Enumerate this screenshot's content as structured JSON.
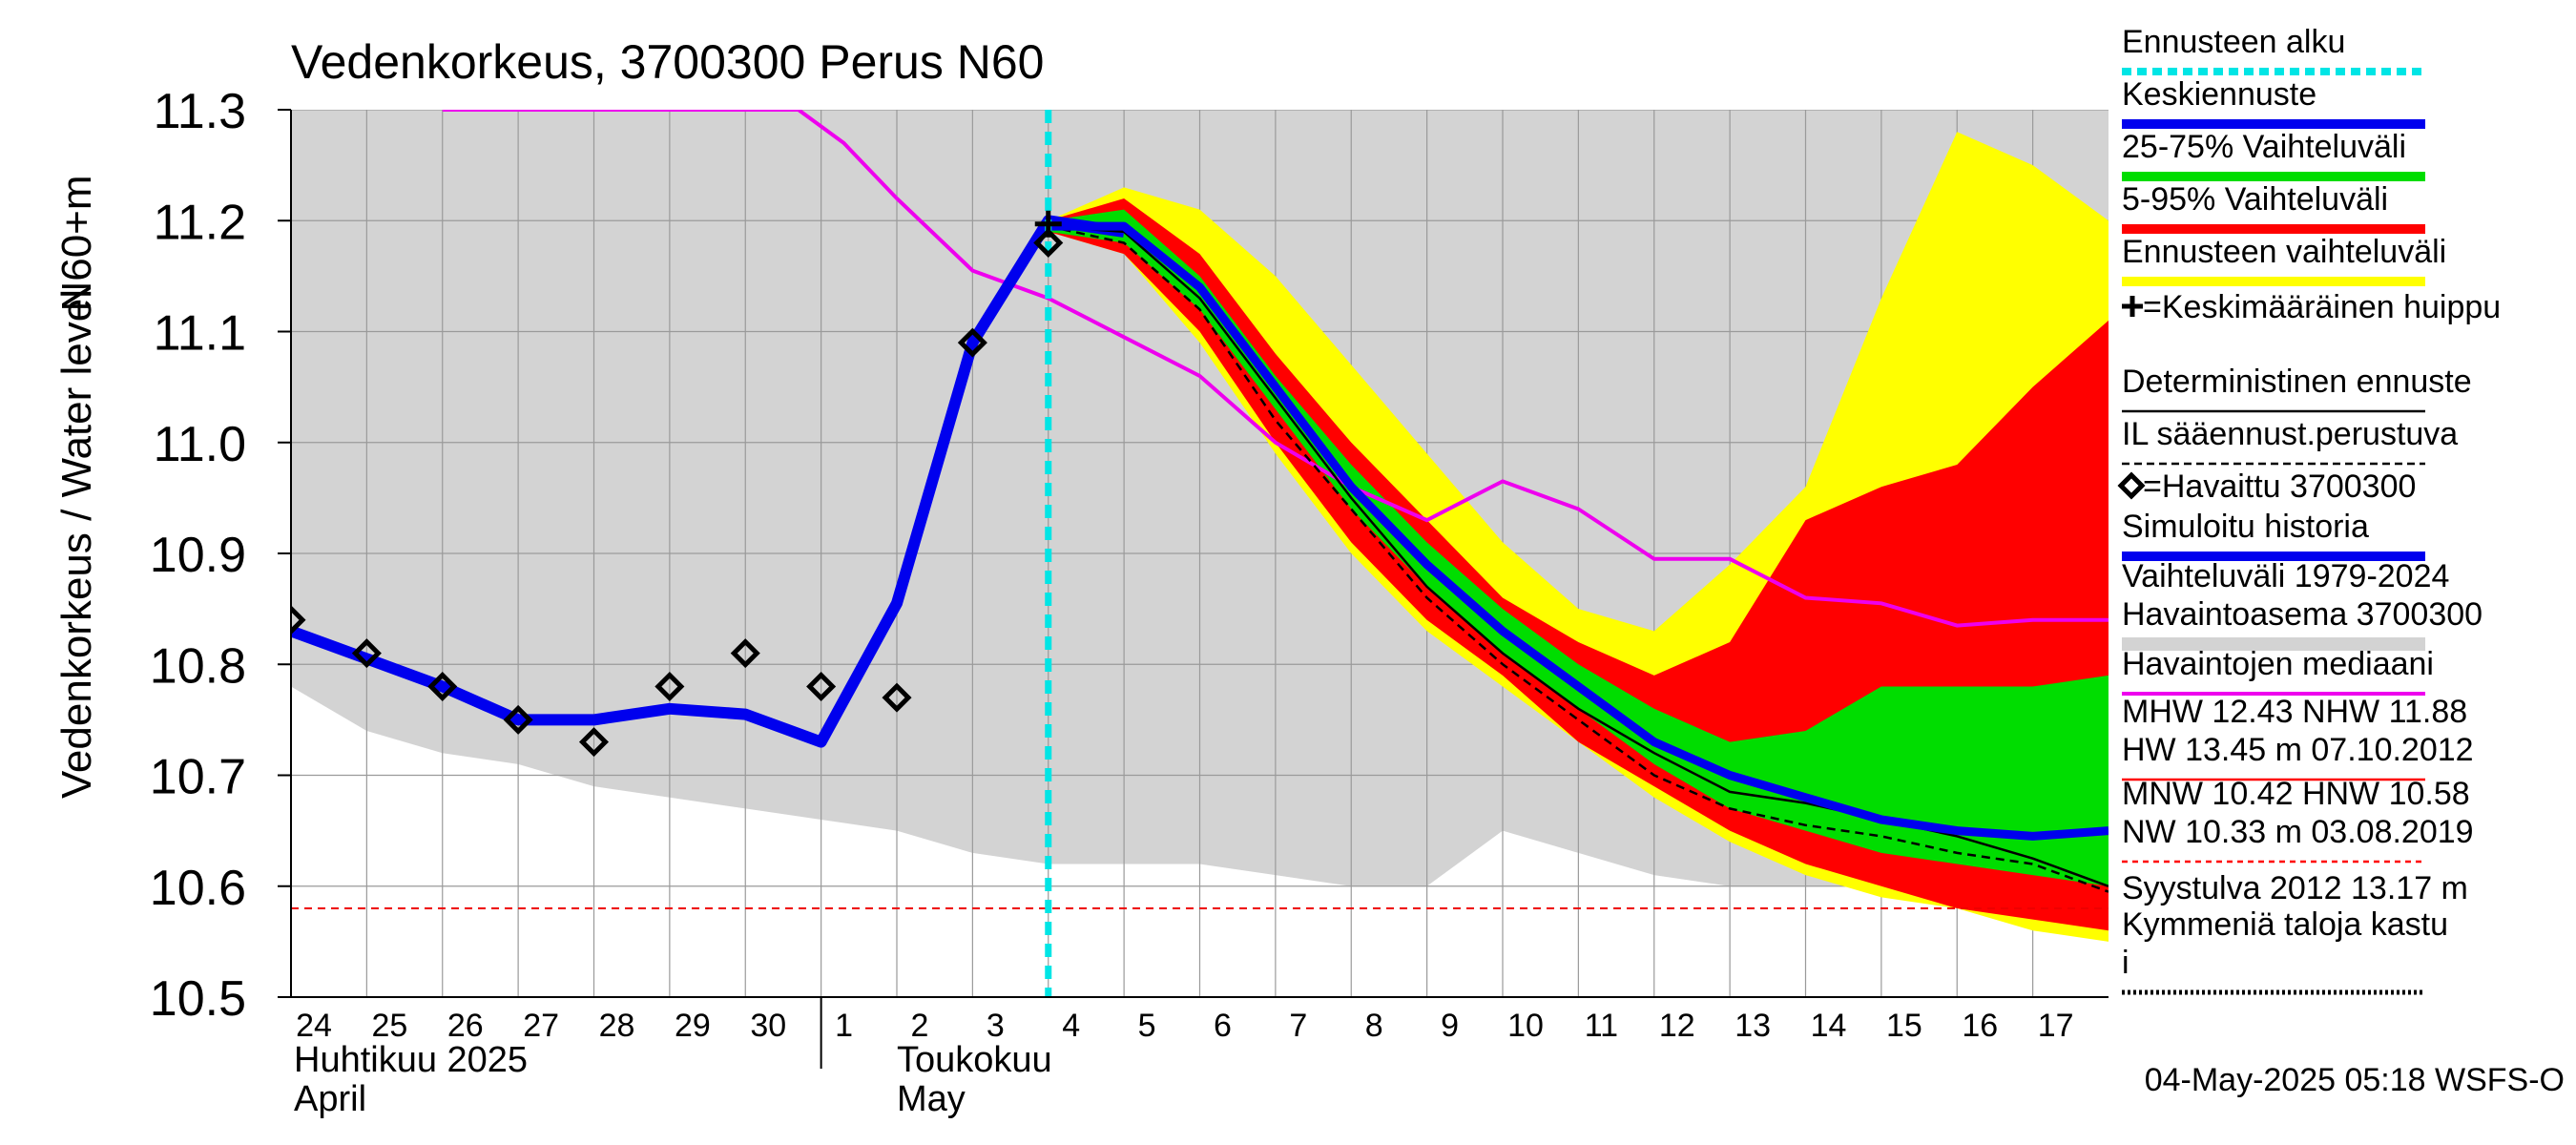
{
  "chart_data": {
    "type": "line",
    "title": "Vedenkorkeus, 3700300 Perus N60",
    "ylabel": "Vedenkorkeus / Water level",
    "yunit": "N60+m",
    "ylim": [
      10.5,
      11.3
    ],
    "yticks": [
      "10.5",
      "10.6",
      "10.7",
      "10.8",
      "10.9",
      "11.0",
      "11.1",
      "11.2",
      "11.3"
    ],
    "xlim": [
      0,
      24
    ],
    "xticks": [
      "24",
      "25",
      "26",
      "27",
      "28",
      "29",
      "30",
      "1",
      "2",
      "3",
      "4",
      "5",
      "6",
      "7",
      "8",
      "9",
      "10",
      "11",
      "12",
      "13",
      "14",
      "15",
      "16",
      "17"
    ],
    "month_labels": [
      {
        "fi": "Huhtikuu  2025",
        "en": "April"
      },
      {
        "fi": "Toukokuu",
        "en": "May"
      }
    ],
    "grid": true,
    "forecast_start_x": 10,
    "footer": "04-May-2025 05:18 WSFS-O",
    "colors": {
      "hist_range": "#d3d3d3",
      "forecast_range": "#ffff00",
      "p5_95": "#ff0000",
      "p25_75": "#00dd00",
      "mean": "#0000ee",
      "median_obs": "#ee00ee",
      "forecast_start": "#00e5e5",
      "mnw_line": "#ee0000"
    },
    "hist_range": {
      "x": [
        0,
        1,
        2,
        3,
        4,
        5,
        6,
        7,
        8,
        9,
        10,
        11,
        12,
        13,
        14,
        15,
        16,
        17,
        18,
        19,
        20,
        21,
        22,
        23,
        24
      ],
      "upper": [
        11.3,
        11.3,
        11.3,
        11.3,
        11.3,
        11.3,
        11.3,
        11.3,
        11.3,
        11.3,
        11.3,
        11.3,
        11.3,
        11.3,
        11.3,
        11.3,
        11.3,
        11.3,
        11.3,
        11.3,
        11.3,
        11.3,
        11.3,
        11.3,
        11.3
      ],
      "lower": [
        10.78,
        10.74,
        10.72,
        10.71,
        10.69,
        10.68,
        10.67,
        10.66,
        10.65,
        10.63,
        10.62,
        10.62,
        10.62,
        10.61,
        10.6,
        10.6,
        10.65,
        10.63,
        10.61,
        10.6,
        10.6,
        10.6,
        10.6,
        10.6,
        10.6
      ]
    },
    "forecast_range": {
      "x": [
        10,
        11,
        12,
        13,
        14,
        15,
        16,
        17,
        18,
        19,
        20,
        21,
        22,
        23,
        24
      ],
      "upper": [
        11.2,
        11.23,
        11.21,
        11.15,
        11.07,
        10.99,
        10.91,
        10.85,
        10.83,
        10.89,
        10.96,
        11.13,
        11.28,
        11.25,
        11.2
      ],
      "lower": [
        11.19,
        11.17,
        11.09,
        10.99,
        10.9,
        10.83,
        10.78,
        10.73,
        10.68,
        10.64,
        10.61,
        10.59,
        10.58,
        10.56,
        10.55
      ]
    },
    "p5_95": {
      "x": [
        10,
        11,
        12,
        13,
        14,
        15,
        16,
        17,
        18,
        19,
        20,
        21,
        22,
        23,
        24
      ],
      "upper": [
        11.2,
        11.22,
        11.17,
        11.08,
        11.0,
        10.93,
        10.86,
        10.82,
        10.79,
        10.82,
        10.93,
        10.96,
        10.98,
        11.05,
        11.11
      ],
      "lower": [
        11.19,
        11.17,
        11.1,
        11.0,
        10.91,
        10.84,
        10.79,
        10.73,
        10.69,
        10.65,
        10.62,
        10.6,
        10.58,
        10.57,
        10.56
      ]
    },
    "p25_75": {
      "x": [
        10,
        11,
        12,
        13,
        14,
        15,
        16,
        17,
        18,
        19,
        20,
        21,
        22,
        23,
        24
      ],
      "upper": [
        11.2,
        11.21,
        11.15,
        11.06,
        10.98,
        10.91,
        10.85,
        10.8,
        10.76,
        10.73,
        10.74,
        10.78,
        10.78,
        10.78,
        10.79
      ],
      "lower": [
        11.19,
        11.18,
        11.12,
        11.03,
        10.94,
        10.87,
        10.81,
        10.76,
        10.71,
        10.67,
        10.65,
        10.63,
        10.62,
        10.61,
        10.6
      ]
    },
    "series": [
      {
        "name": "Keskiennuste",
        "x": [
          10,
          11,
          12,
          13,
          14,
          15,
          16,
          17,
          18,
          19,
          20,
          21,
          22,
          23,
          24
        ],
        "values": [
          11.195,
          11.195,
          11.14,
          11.05,
          10.96,
          10.89,
          10.83,
          10.78,
          10.73,
          10.7,
          10.68,
          10.66,
          10.65,
          10.645,
          10.65
        ]
      },
      {
        "name": "Deterministinen ennuste",
        "x": [
          10,
          11,
          12,
          13,
          14,
          15,
          16,
          17,
          18,
          19,
          20,
          21,
          22,
          23,
          24
        ],
        "values": [
          11.195,
          11.19,
          11.13,
          11.04,
          10.95,
          10.87,
          10.81,
          10.76,
          10.72,
          10.685,
          10.675,
          10.66,
          10.645,
          10.625,
          10.6
        ]
      },
      {
        "name": "IL sääennust.perustuva",
        "x": [
          10,
          11,
          12,
          13,
          14,
          15,
          16,
          17,
          18,
          19,
          20,
          21,
          22,
          23,
          24
        ],
        "values": [
          11.195,
          11.18,
          11.12,
          11.02,
          10.94,
          10.86,
          10.8,
          10.75,
          10.7,
          10.67,
          10.655,
          10.645,
          10.63,
          10.62,
          10.595
        ]
      },
      {
        "name": "Simuloitu historia",
        "x": [
          0,
          1,
          2,
          3,
          4,
          5,
          6,
          7,
          8,
          9,
          10,
          11
        ],
        "values": [
          10.83,
          10.805,
          10.78,
          10.75,
          10.75,
          10.76,
          10.755,
          10.73,
          10.855,
          11.09,
          11.2,
          11.19
        ]
      },
      {
        "name": "Havaintojen mediaani",
        "x": [
          2,
          6.7,
          7.3,
          8,
          9,
          10,
          11,
          12,
          13,
          14,
          15,
          16,
          17,
          18,
          19,
          20,
          21,
          22,
          23,
          24
        ],
        "values": [
          11.3,
          11.3,
          11.27,
          11.22,
          11.155,
          11.13,
          11.095,
          11.06,
          11.0,
          10.96,
          10.93,
          10.965,
          10.94,
          10.895,
          10.895,
          10.86,
          10.855,
          10.835,
          10.84,
          10.84
        ]
      }
    ],
    "observed": {
      "name": "Havaittu 3700300",
      "x": [
        0,
        1,
        2,
        3,
        4,
        5,
        6,
        7,
        8,
        9,
        10
      ],
      "values": [
        10.84,
        10.81,
        10.78,
        10.75,
        10.73,
        10.78,
        10.81,
        10.78,
        10.77,
        11.09,
        11.18
      ]
    },
    "mean_peak": {
      "x": 10,
      "value": 11.197
    },
    "mnw_level": 10.58,
    "legend_position": "right",
    "legend": [
      {
        "label": "Ennusteen alku",
        "style": "dotted-cyan"
      },
      {
        "label": "Keskiennuste",
        "style": "thick-blue"
      },
      {
        "label": "25-75% Vaihteluväli",
        "style": "thick-green"
      },
      {
        "label": "5-95% Vaihteluväli",
        "style": "thick-red"
      },
      {
        "label": "Ennusteen vaihteluväli",
        "style": "thick-yellow"
      },
      {
        "label": "=Keskimääräinen huippu",
        "style": "cross"
      },
      {
        "label": "Deterministinen ennuste",
        "style": "thin-black"
      },
      {
        "label": "IL sääennust.perustuva",
        "style": "dashed-black"
      },
      {
        "label": "=Havaittu 3700300",
        "style": "diamond"
      },
      {
        "label": "Simuloitu historia",
        "style": "thick-blue"
      },
      {
        "label": "Vaihteluväli 1979-2024\n Havaintoasema 3700300",
        "style": "thick-gray"
      },
      {
        "label": "Havaintojen mediaani",
        "style": "thin-magenta"
      },
      {
        "label": "MHW  12.43 NHW  11.88\nHW  13.45 m 07.10.2012",
        "style": "thin-red"
      },
      {
        "label": "MNW  10.42 HNW  10.58\nNW  10.33 m 03.08.2019",
        "style": "dashed-red"
      },
      {
        "label": "Syystulva 2012 13.17 m",
        "style": "thick-white"
      },
      {
        "label": "Kymmeniä taloja kastu\ni",
        "style": "dotted-black"
      }
    ]
  }
}
